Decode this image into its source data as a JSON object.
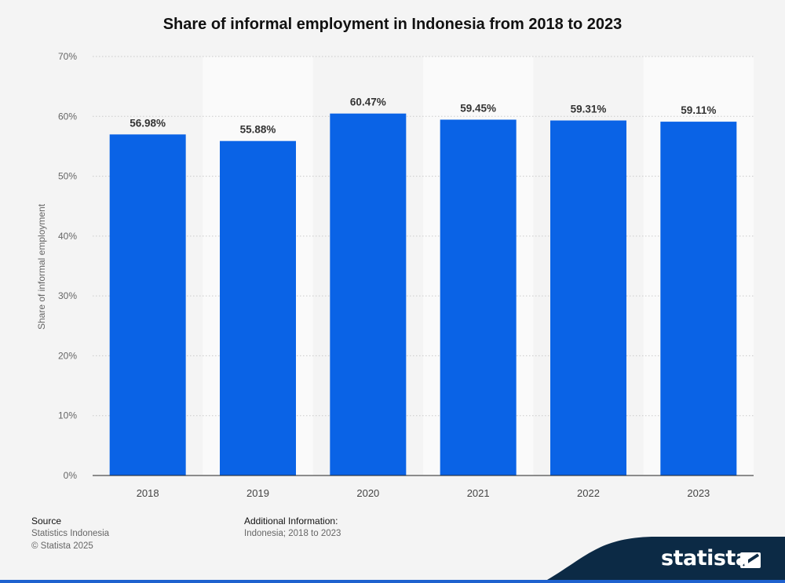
{
  "chart_data": {
    "type": "bar",
    "title": "Share of informal employment in Indonesia from 2018 to 2023",
    "xlabel": "",
    "ylabel": "Share of informal employment",
    "categories": [
      "2018",
      "2019",
      "2020",
      "2021",
      "2022",
      "2023"
    ],
    "values": [
      56.98,
      55.88,
      60.47,
      59.45,
      59.31,
      59.11
    ],
    "value_labels": [
      "56.98%",
      "55.88%",
      "60.47%",
      "59.45%",
      "59.31%",
      "59.11%"
    ],
    "ylim": [
      0,
      70
    ],
    "yticks": [
      0,
      10,
      20,
      30,
      40,
      50,
      60,
      70
    ],
    "ytick_labels": [
      "0%",
      "10%",
      "20%",
      "30%",
      "40%",
      "50%",
      "60%",
      "70%"
    ],
    "grid": true,
    "legend": "none",
    "bar_color": "#0a63e6"
  },
  "footer": {
    "source_heading": "Source",
    "source_lines": [
      "Statistics Indonesia",
      "© Statista 2025"
    ],
    "additional_heading": "Additional Information:",
    "additional_text": "Indonesia; 2018 to 2023"
  },
  "brand": {
    "name": "statista",
    "band_color": "#0c2a45",
    "accent_color": "#1f62cf"
  }
}
